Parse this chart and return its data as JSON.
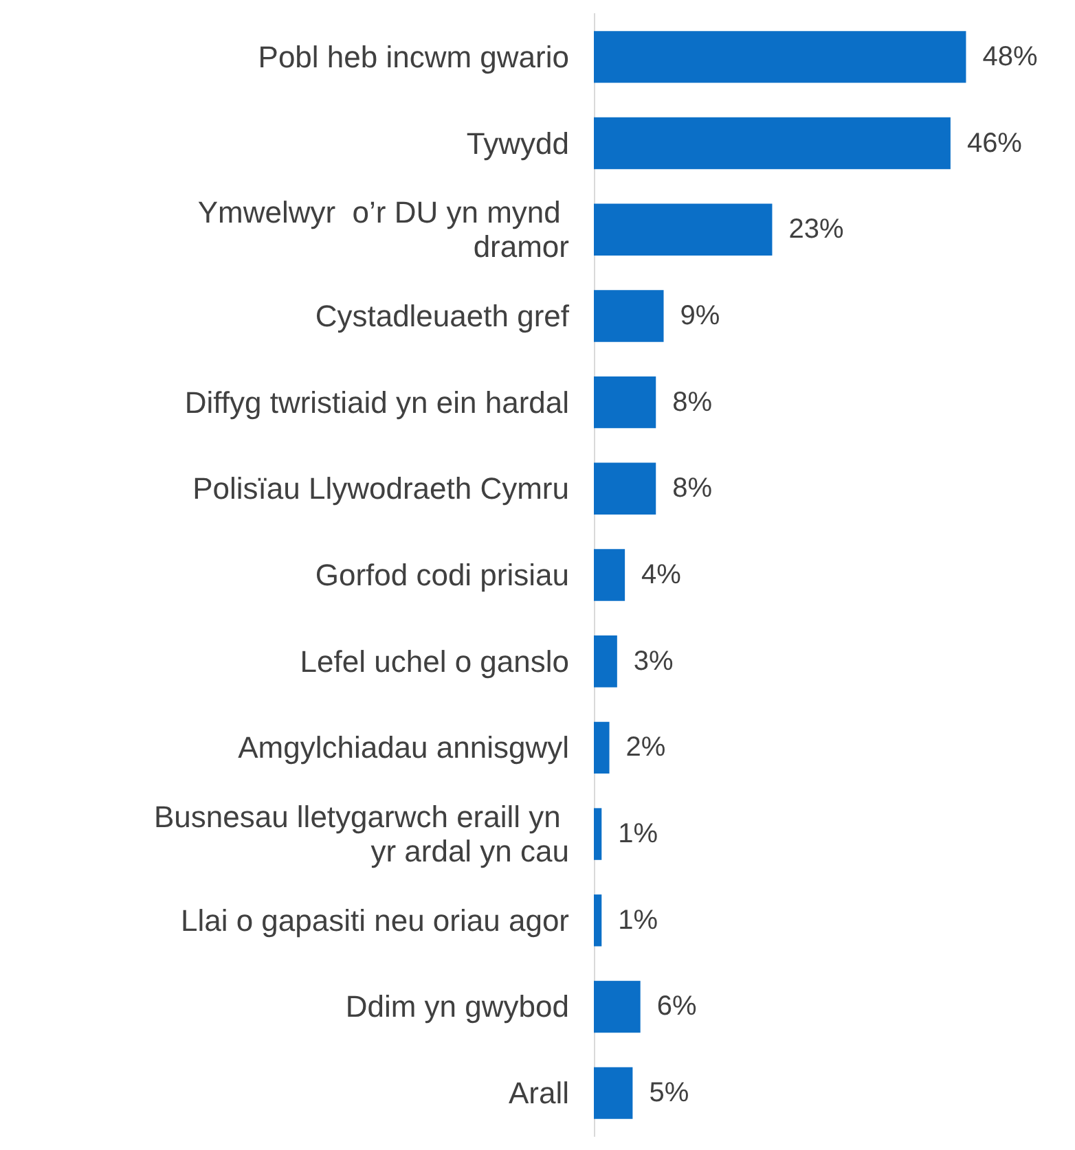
{
  "chart_data": {
    "type": "bar",
    "orientation": "horizontal",
    "categories": [
      "Pobl heb incwm gwario",
      "Tywydd",
      "Ymwelwyr  o’r DU yn mynd dramor",
      "Cystadleuaeth gref",
      "Diffyg twristiaid yn ein hardal",
      "Polisïau Llywodraeth Cymru",
      "Gorfod codi prisiau",
      "Lefel uchel o ganslo",
      "Amgylchiadau annisgwyl",
      "Busnesau lletygarwch eraill yn yr ardal yn cau",
      "Llai o gapasiti neu oriau agor",
      "Ddim yn gwybod",
      "Arall"
    ],
    "values": [
      48,
      46,
      23,
      9,
      8,
      8,
      4,
      3,
      2,
      1,
      1,
      6,
      5
    ],
    "value_labels": [
      "48%",
      "46%",
      "23%",
      "9%",
      "8%",
      "8%",
      "4%",
      "3%",
      "2%",
      "1%",
      "1%",
      "6%",
      "5%"
    ],
    "color": "#0b6fc7"
  }
}
